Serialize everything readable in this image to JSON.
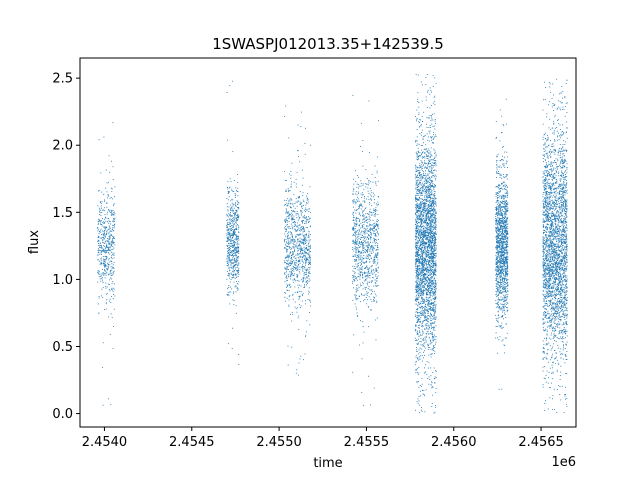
{
  "chart_data": {
    "type": "scatter",
    "title": "1SWASPJ012013.35+142539.5",
    "xlabel": "time",
    "ylabel": "flux",
    "x_offset_label": "1e6",
    "x_tick_labels": [
      "2.4540",
      "2.4545",
      "2.4550",
      "2.4555",
      "2.4560",
      "2.4565"
    ],
    "y_tick_labels": [
      "0.0",
      "0.5",
      "1.0",
      "1.5",
      "2.0",
      "2.5"
    ],
    "xlim": [
      2453860,
      2456700
    ],
    "ylim": [
      -0.1,
      2.65
    ],
    "x_ticks": [
      2454000,
      2454500,
      2455000,
      2455500,
      2456000,
      2456500
    ],
    "y_ticks": [
      0.0,
      0.5,
      1.0,
      1.5,
      2.0,
      2.5
    ],
    "grid": false,
    "marker_color": "#1f77b4",
    "series": [
      {
        "clusters": [
          {
            "x_range": [
              2453960,
              2454060
            ],
            "y_center": 1.25,
            "y_spread": 0.2,
            "y_range": [
              0.05,
              2.25
            ],
            "count": 520
          },
          {
            "x_range": [
              2454700,
              2454770
            ],
            "y_center": 1.28,
            "y_spread": 0.2,
            "y_range": [
              0.25,
              2.5
            ],
            "count": 600
          },
          {
            "x_range": [
              2455030,
              2455180
            ],
            "y_center": 1.25,
            "y_spread": 0.22,
            "y_range": [
              0.2,
              2.3
            ],
            "count": 900
          },
          {
            "x_range": [
              2455420,
              2455570
            ],
            "y_center": 1.28,
            "y_spread": 0.22,
            "y_range": [
              0.05,
              2.4
            ],
            "count": 900
          },
          {
            "x_range": [
              2455780,
              2455900
            ],
            "y_center": 1.25,
            "y_spread": 0.42,
            "y_range": [
              0.0,
              2.55
            ],
            "count": 3000
          },
          {
            "x_range": [
              2456240,
              2456310
            ],
            "y_center": 1.25,
            "y_spread": 0.28,
            "y_range": [
              0.1,
              2.35
            ],
            "count": 1400
          },
          {
            "x_range": [
              2456510,
              2456650
            ],
            "y_center": 1.25,
            "y_spread": 0.42,
            "y_range": [
              0.0,
              2.5
            ],
            "count": 2800
          }
        ]
      }
    ]
  }
}
